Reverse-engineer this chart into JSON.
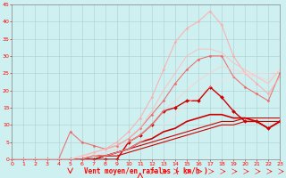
{
  "xlabel": "Vent moyen/en rafales ( km/h )",
  "background_color": "#cff0f0",
  "grid_color": "#aacccc",
  "xlim": [
    0,
    23
  ],
  "ylim": [
    0,
    45
  ],
  "xticks": [
    0,
    1,
    2,
    3,
    4,
    5,
    6,
    7,
    8,
    9,
    10,
    11,
    12,
    13,
    14,
    15,
    16,
    17,
    18,
    19,
    20,
    21,
    22,
    23
  ],
  "yticks": [
    0,
    5,
    10,
    15,
    20,
    25,
    30,
    35,
    40,
    45
  ],
  "lines": [
    {
      "x": [
        0,
        1,
        2,
        3,
        4,
        5,
        6,
        7,
        8,
        9,
        10,
        11,
        12,
        13,
        14,
        15,
        16,
        17,
        18,
        19,
        20,
        21,
        22,
        23
      ],
      "y": [
        0,
        0,
        0,
        0,
        0,
        0,
        0,
        0,
        0,
        0,
        5,
        7,
        10,
        14,
        15,
        17,
        17,
        21,
        18,
        14,
        11,
        11,
        9,
        11
      ],
      "color": "#cc0000",
      "marker": "D",
      "markersize": 2.0,
      "lw": 1.0,
      "alpha": 1.0
    },
    {
      "x": [
        0,
        1,
        2,
        3,
        4,
        5,
        6,
        7,
        8,
        9,
        10,
        11,
        12,
        13,
        14,
        15,
        16,
        17,
        18,
        19,
        20,
        21,
        22,
        23
      ],
      "y": [
        0,
        0,
        0,
        0,
        0,
        0,
        0,
        0,
        1,
        1,
        2,
        3,
        4,
        5,
        6,
        7,
        8,
        9,
        10,
        10,
        11,
        11,
        11,
        11
      ],
      "color": "#cc0000",
      "marker": null,
      "markersize": 0,
      "lw": 0.8,
      "alpha": 1.0
    },
    {
      "x": [
        0,
        1,
        2,
        3,
        4,
        5,
        6,
        7,
        8,
        9,
        10,
        11,
        12,
        13,
        14,
        15,
        16,
        17,
        18,
        19,
        20,
        21,
        22,
        23
      ],
      "y": [
        0,
        0,
        0,
        0,
        0,
        0,
        0,
        0,
        1,
        2,
        3,
        4,
        5,
        6,
        7,
        8,
        9,
        10,
        11,
        11,
        12,
        12,
        12,
        12
      ],
      "color": "#cc0000",
      "marker": null,
      "markersize": 0,
      "lw": 0.8,
      "alpha": 1.0
    },
    {
      "x": [
        0,
        1,
        2,
        3,
        4,
        5,
        6,
        7,
        8,
        9,
        10,
        11,
        12,
        13,
        14,
        15,
        16,
        17,
        18,
        19,
        20,
        21,
        22,
        23
      ],
      "y": [
        0,
        0,
        0,
        0,
        0,
        0,
        0,
        1,
        1,
        2,
        3,
        5,
        6,
        8,
        9,
        11,
        12,
        13,
        13,
        12,
        12,
        11,
        9,
        11
      ],
      "color": "#cc0000",
      "marker": null,
      "markersize": 0,
      "lw": 1.2,
      "alpha": 1.0
    },
    {
      "x": [
        0,
        1,
        2,
        3,
        4,
        5,
        6,
        7,
        8,
        9,
        10,
        11,
        12,
        13,
        14,
        15,
        16,
        17,
        18,
        19,
        20,
        21,
        22,
        23
      ],
      "y": [
        0,
        0,
        0,
        0,
        0,
        8,
        5,
        4,
        3,
        4,
        6,
        9,
        13,
        17,
        22,
        26,
        29,
        30,
        30,
        24,
        21,
        19,
        17,
        25
      ],
      "color": "#ee6666",
      "marker": "D",
      "markersize": 1.5,
      "lw": 0.8,
      "alpha": 0.9
    },
    {
      "x": [
        0,
        1,
        2,
        3,
        4,
        5,
        6,
        7,
        8,
        9,
        10,
        11,
        12,
        13,
        14,
        15,
        16,
        17,
        18,
        19,
        20,
        21,
        22,
        23
      ],
      "y": [
        0,
        0,
        0,
        0,
        0,
        0,
        1,
        2,
        3,
        5,
        8,
        12,
        18,
        26,
        34,
        38,
        40,
        43,
        39,
        30,
        25,
        22,
        19,
        24
      ],
      "color": "#ffaaaa",
      "marker": "D",
      "markersize": 1.5,
      "lw": 0.8,
      "alpha": 0.85
    },
    {
      "x": [
        0,
        1,
        2,
        3,
        4,
        5,
        6,
        7,
        8,
        9,
        10,
        11,
        12,
        13,
        14,
        15,
        16,
        17,
        18,
        19,
        20,
        21,
        22,
        23
      ],
      "y": [
        0,
        0,
        0,
        0,
        0,
        0,
        1,
        2,
        3,
        4,
        6,
        9,
        14,
        20,
        25,
        30,
        32,
        32,
        31,
        28,
        26,
        24,
        22,
        26
      ],
      "color": "#ffbbbb",
      "marker": null,
      "markersize": 0,
      "lw": 0.8,
      "alpha": 0.8
    },
    {
      "x": [
        0,
        1,
        2,
        3,
        4,
        5,
        6,
        7,
        8,
        9,
        10,
        11,
        12,
        13,
        14,
        15,
        16,
        17,
        18,
        19,
        20,
        21,
        22,
        23
      ],
      "y": [
        0,
        0,
        0,
        0,
        0,
        0,
        1,
        1,
        2,
        3,
        5,
        7,
        10,
        14,
        17,
        20,
        23,
        25,
        27,
        26,
        25,
        24,
        23,
        26
      ],
      "color": "#ffcccc",
      "marker": null,
      "markersize": 0,
      "lw": 0.8,
      "alpha": 0.7
    },
    {
      "x": [
        0,
        1,
        2,
        3,
        4,
        5,
        6,
        7,
        8,
        9,
        10,
        11,
        12,
        13,
        14,
        15,
        16,
        17,
        18,
        19,
        20,
        21,
        22,
        23
      ],
      "y": [
        0,
        0,
        0,
        0,
        0,
        0,
        0,
        1,
        1,
        2,
        3,
        5,
        7,
        10,
        13,
        16,
        19,
        21,
        23,
        24,
        25,
        25,
        25,
        26
      ],
      "color": "#ffdddd",
      "marker": null,
      "markersize": 0,
      "lw": 0.8,
      "alpha": 0.65
    }
  ],
  "wind_down_x": 5,
  "wind_up_x": 11
}
